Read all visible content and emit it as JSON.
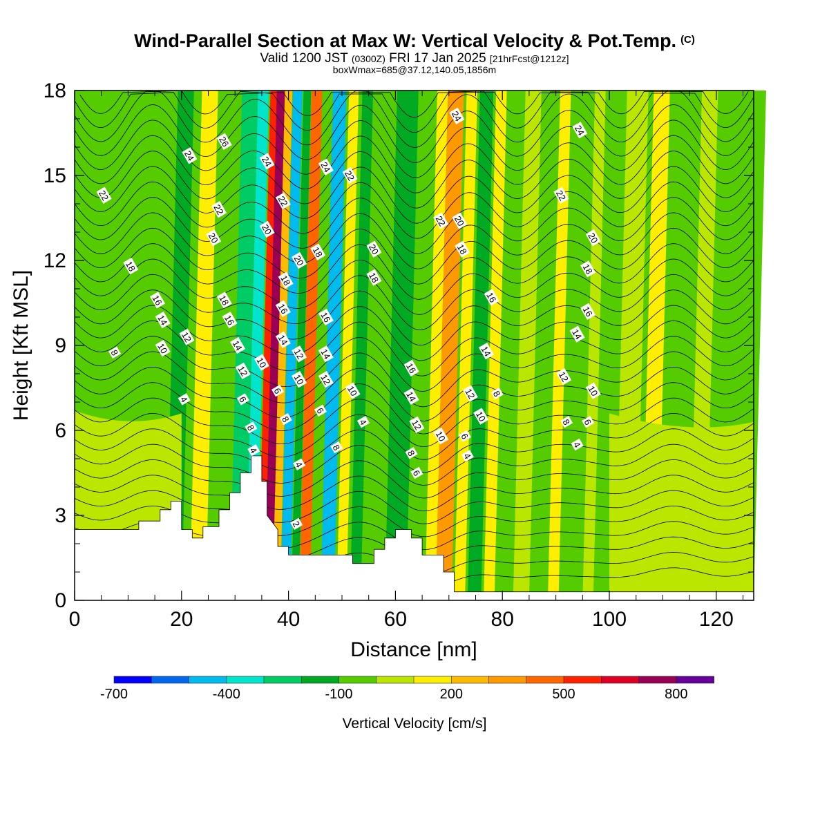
{
  "title": {
    "main": "Wind-Parallel Section at Max W: Vertical Velocity & Pot.Temp.",
    "copyright": "(C)",
    "valid_prefix": "Valid 1200 JST",
    "valid_utc": "(0300Z)",
    "valid_date": "FRI 17 Jan 2025",
    "forecast": "[21hrFcst@1212z]",
    "box_info": "boxWmax=685@37.12,140.05,1856m"
  },
  "chart_data": {
    "type": "heatmap",
    "xlabel": "Distance [nm]",
    "ylabel": "Height [Kft MSL]",
    "xlim": [
      0,
      127
    ],
    "ylim": [
      0,
      18
    ],
    "x_ticks": [
      "0",
      "20",
      "40",
      "60",
      "80",
      "100",
      "120"
    ],
    "y_ticks": [
      "0",
      "3",
      "6",
      "9",
      "12",
      "15",
      "18"
    ],
    "colorbar": {
      "label": "Vertical Velocity [cm/s]",
      "tick_labels": [
        "-700",
        "-400",
        "-100",
        "200",
        "500",
        "800"
      ],
      "tick_values": [
        -700,
        -400,
        -100,
        200,
        500,
        800
      ],
      "range": [
        -700,
        900
      ],
      "colors": [
        "#0000ff",
        "#0066ee",
        "#00bbee",
        "#00e5cc",
        "#00cc66",
        "#00aa22",
        "#55cc00",
        "#bbe600",
        "#ffee00",
        "#ffbb00",
        "#ff9900",
        "#ff6600",
        "#ff2200",
        "#dd0022",
        "#990055",
        "#660099"
      ]
    },
    "velocity_bands": [
      {
        "x": 0,
        "w": 13,
        "c": 6
      },
      {
        "x": 17,
        "w": 3,
        "c": 5
      },
      {
        "x": 21.5,
        "w": 3,
        "c": 8
      },
      {
        "x": 25,
        "w": 4,
        "c": 6
      },
      {
        "x": 29,
        "w": 3,
        "c": 4
      },
      {
        "x": 32,
        "w": 2,
        "c": 3
      },
      {
        "x": 34.3,
        "w": 1.5,
        "c": 12
      },
      {
        "x": 35.5,
        "w": 1.6,
        "c": 14
      },
      {
        "x": 37,
        "w": 1.4,
        "c": 9
      },
      {
        "x": 38.5,
        "w": 1.8,
        "c": 2
      },
      {
        "x": 40.5,
        "w": 1.4,
        "c": 5
      },
      {
        "x": 42,
        "w": 2,
        "c": 11
      },
      {
        "x": 44.3,
        "w": 1.5,
        "c": 6
      },
      {
        "x": 46,
        "w": 2.5,
        "c": 2
      },
      {
        "x": 49,
        "w": 1.8,
        "c": 8
      },
      {
        "x": 51.5,
        "w": 2,
        "c": 5
      },
      {
        "x": 54,
        "w": 4,
        "c": 6
      },
      {
        "x": 58,
        "w": 4,
        "c": 5
      },
      {
        "x": 62,
        "w": 3.5,
        "c": 6
      },
      {
        "x": 65.5,
        "w": 2,
        "c": 8
      },
      {
        "x": 67.5,
        "w": 3,
        "c": 10
      },
      {
        "x": 71,
        "w": 2,
        "c": 8
      },
      {
        "x": 73.5,
        "w": 2.5,
        "c": 5
      },
      {
        "x": 76.5,
        "w": 2,
        "c": 8
      },
      {
        "x": 79,
        "w": 3,
        "c": 6
      },
      {
        "x": 82,
        "w": 3,
        "c": 7
      },
      {
        "x": 85,
        "w": 3,
        "c": 6
      },
      {
        "x": 88.5,
        "w": 2,
        "c": 8
      },
      {
        "x": 91,
        "w": 3,
        "c": 6
      },
      {
        "x": 95,
        "w": 2,
        "c": 7
      },
      {
        "x": 97,
        "w": 3,
        "c": 6
      },
      {
        "x": 101,
        "w": 4,
        "c": 7
      },
      {
        "x": 106,
        "w": 3,
        "c": 8
      },
      {
        "x": 110,
        "w": 4,
        "c": 6
      },
      {
        "x": 115,
        "w": 3,
        "c": 7
      },
      {
        "x": 119,
        "w": 8,
        "c": 6
      }
    ],
    "theta_labels": [
      {
        "x": 5.5,
        "y": 14.3,
        "t": "22"
      },
      {
        "x": 10.5,
        "y": 11.8,
        "t": "18"
      },
      {
        "x": 7.5,
        "y": 8.75,
        "t": "8"
      },
      {
        "x": 15.5,
        "y": 10.6,
        "t": "16"
      },
      {
        "x": 16.5,
        "y": 9.9,
        "t": "14"
      },
      {
        "x": 16.5,
        "y": 8.9,
        "t": "10"
      },
      {
        "x": 21,
        "y": 9.3,
        "t": "12"
      },
      {
        "x": 20.5,
        "y": 7.1,
        "t": "4"
      },
      {
        "x": 21.5,
        "y": 15.7,
        "t": "24"
      },
      {
        "x": 28,
        "y": 16.2,
        "t": "26"
      },
      {
        "x": 27,
        "y": 13.8,
        "t": "22"
      },
      {
        "x": 26,
        "y": 12.8,
        "t": "20"
      },
      {
        "x": 28,
        "y": 10.6,
        "t": "18"
      },
      {
        "x": 29,
        "y": 9.9,
        "t": "16"
      },
      {
        "x": 30.5,
        "y": 9,
        "t": "14"
      },
      {
        "x": 31.5,
        "y": 8.1,
        "t": "12"
      },
      {
        "x": 31.5,
        "y": 7.1,
        "t": "6"
      },
      {
        "x": 33,
        "y": 6.1,
        "t": "8"
      },
      {
        "x": 33.5,
        "y": 5.3,
        "t": "4"
      },
      {
        "x": 36,
        "y": 15.5,
        "t": "24"
      },
      {
        "x": 36,
        "y": 13.1,
        "t": "20"
      },
      {
        "x": 35,
        "y": 8.4,
        "t": "10"
      },
      {
        "x": 39,
        "y": 14.1,
        "t": "22"
      },
      {
        "x": 39.5,
        "y": 11.3,
        "t": "18"
      },
      {
        "x": 39,
        "y": 10.3,
        "t": "16"
      },
      {
        "x": 39,
        "y": 9.2,
        "t": "14"
      },
      {
        "x": 38,
        "y": 7.4,
        "t": "6"
      },
      {
        "x": 39.5,
        "y": 6.4,
        "t": "8"
      },
      {
        "x": 42,
        "y": 12,
        "t": "20"
      },
      {
        "x": 42,
        "y": 8.7,
        "t": "12"
      },
      {
        "x": 42,
        "y": 7.8,
        "t": "10"
      },
      {
        "x": 42,
        "y": 4.8,
        "t": "4"
      },
      {
        "x": 41.5,
        "y": 2.7,
        "t": "2"
      },
      {
        "x": 45.5,
        "y": 12.3,
        "t": "18"
      },
      {
        "x": 47,
        "y": 15.3,
        "t": "24"
      },
      {
        "x": 47,
        "y": 10,
        "t": "16"
      },
      {
        "x": 47,
        "y": 8.7,
        "t": "14"
      },
      {
        "x": 47,
        "y": 7.8,
        "t": "12"
      },
      {
        "x": 46,
        "y": 6.7,
        "t": "6"
      },
      {
        "x": 49,
        "y": 5.4,
        "t": "8"
      },
      {
        "x": 51.5,
        "y": 15,
        "t": "22"
      },
      {
        "x": 52,
        "y": 7.4,
        "t": "10"
      },
      {
        "x": 54,
        "y": 6.3,
        "t": "4"
      },
      {
        "x": 56,
        "y": 12.4,
        "t": "20"
      },
      {
        "x": 56,
        "y": 11.4,
        "t": "18"
      },
      {
        "x": 63,
        "y": 8.2,
        "t": "16"
      },
      {
        "x": 63,
        "y": 7.2,
        "t": "14"
      },
      {
        "x": 64,
        "y": 6.2,
        "t": "12"
      },
      {
        "x": 63,
        "y": 5.2,
        "t": "8"
      },
      {
        "x": 64,
        "y": 4.5,
        "t": "6"
      },
      {
        "x": 71.5,
        "y": 17.1,
        "t": "24"
      },
      {
        "x": 68.5,
        "y": 13.4,
        "t": "22"
      },
      {
        "x": 72,
        "y": 13.4,
        "t": "20"
      },
      {
        "x": 72.5,
        "y": 12.4,
        "t": "18"
      },
      {
        "x": 78,
        "y": 10.7,
        "t": "16"
      },
      {
        "x": 77,
        "y": 8.8,
        "t": "14"
      },
      {
        "x": 74,
        "y": 7.3,
        "t": "12"
      },
      {
        "x": 79,
        "y": 7.3,
        "t": "8"
      },
      {
        "x": 76,
        "y": 6.5,
        "t": "10"
      },
      {
        "x": 68.5,
        "y": 5.8,
        "t": "10"
      },
      {
        "x": 73,
        "y": 5.8,
        "t": "6"
      },
      {
        "x": 73.5,
        "y": 5.1,
        "t": "4"
      },
      {
        "x": 94.5,
        "y": 16.6,
        "t": "24"
      },
      {
        "x": 91,
        "y": 14.3,
        "t": "22"
      },
      {
        "x": 97,
        "y": 12.8,
        "t": "20"
      },
      {
        "x": 96,
        "y": 11.7,
        "t": "18"
      },
      {
        "x": 96,
        "y": 10.2,
        "t": "16"
      },
      {
        "x": 94,
        "y": 9.4,
        "t": "14"
      },
      {
        "x": 91.5,
        "y": 7.9,
        "t": "12"
      },
      {
        "x": 97,
        "y": 7.4,
        "t": "10"
      },
      {
        "x": 92,
        "y": 6.3,
        "t": "8"
      },
      {
        "x": 96,
        "y": 6.3,
        "t": "6"
      },
      {
        "x": 94,
        "y": 5.5,
        "t": "4"
      }
    ]
  }
}
